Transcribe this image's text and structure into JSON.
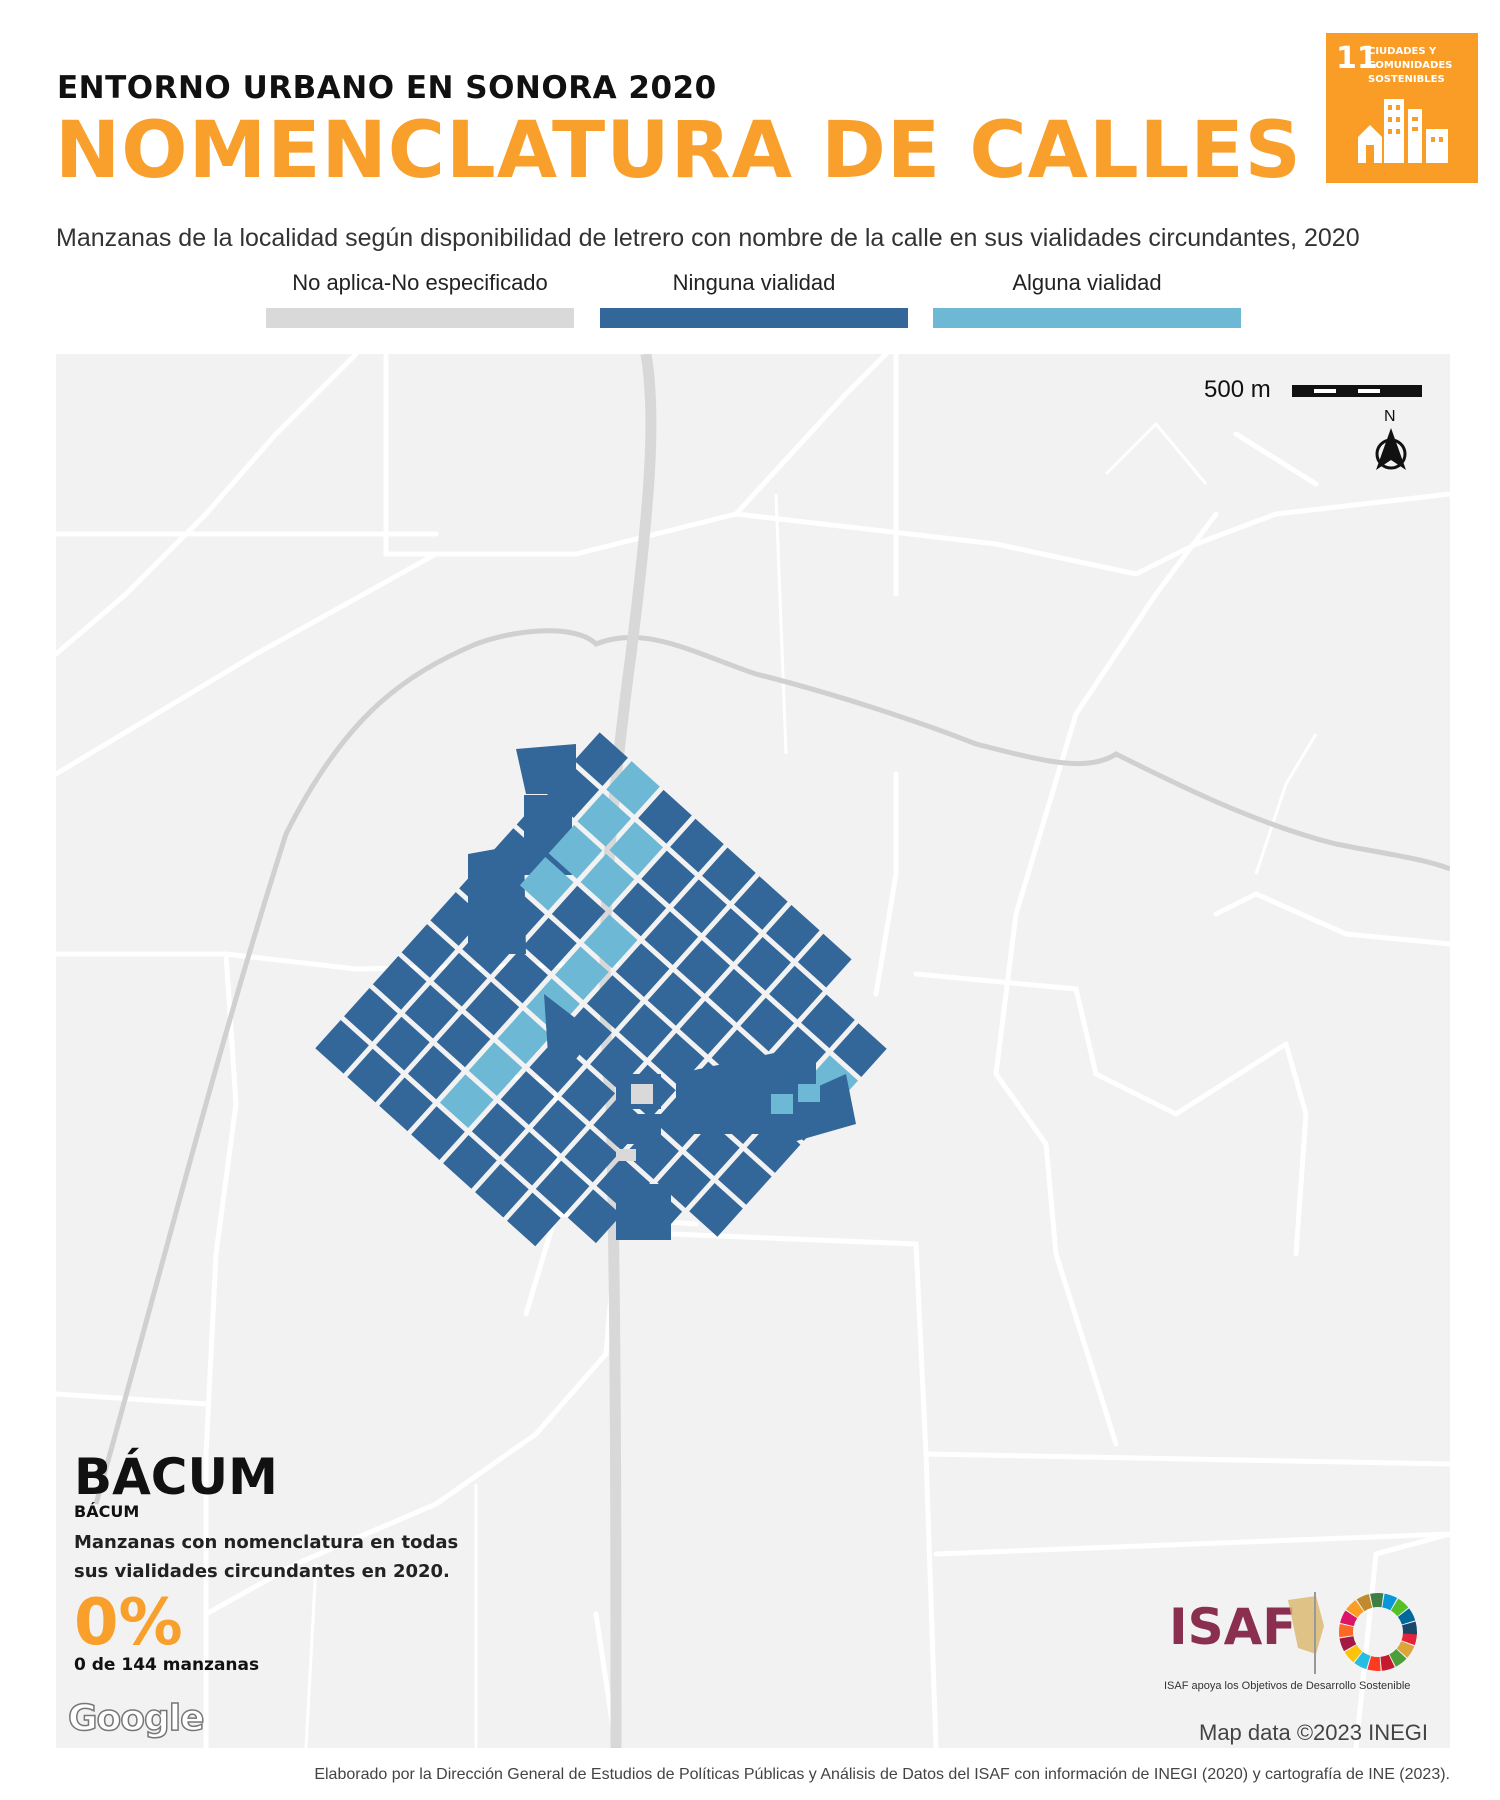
{
  "header": {
    "kicker": "ENTORNO URBANO EN SONORA 2020",
    "title": "NOMENCLATURA DE CALLES",
    "subtitle": "Manzanas de la localidad según disponibilidad de letrero con nombre de la calle en sus vialidades circundantes, 2020"
  },
  "sdg_badge": {
    "number": "11",
    "label": "CIUDADES Y COMUNIDADES SOSTENIBLES",
    "color": "#f99d26"
  },
  "legend": [
    {
      "label": "No aplica-No especificado",
      "color": "#d9d9d9"
    },
    {
      "label": "Ninguna vialidad",
      "color": "#336699"
    },
    {
      "label": "Alguna vialidad",
      "color": "#6db8d5"
    }
  ],
  "map": {
    "scale_label": "500 m",
    "north_label": "N",
    "attribution": "Map data ©2023 INEGI",
    "provider_logo": "Google"
  },
  "place": {
    "name": "BÁCUM",
    "subname": "BÁCUM",
    "description": "Manzanas con nomenclatura en todas sus vialidades circundantes en 2020.",
    "percent": "0%",
    "count_text": "0 de 144 manzanas"
  },
  "logos": {
    "isaf_word": "ISAF",
    "isaf_tagline": "ISAF apoya los Objetivos de Desarrollo Sostenible"
  },
  "footer": "Elaborado por la Dirección General de Estudios de Políticas Públicas y Análisis de Datos del ISAF con información de INEGI (2020) y cartografía de INE (2023)."
}
